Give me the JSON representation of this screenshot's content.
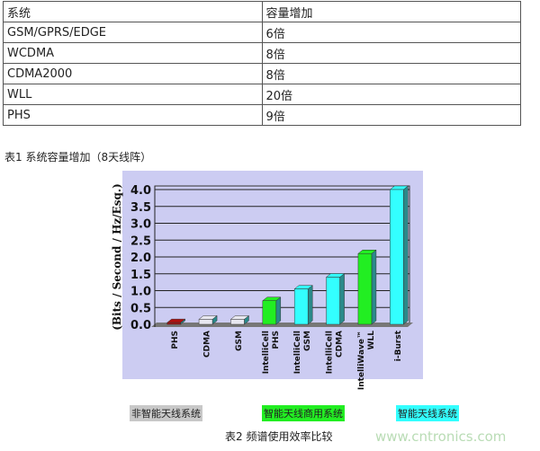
{
  "table": {
    "header": [
      "系统",
      "容量增加"
    ],
    "rows": [
      [
        "GSM/GPRS/EDGE",
        "6倍"
      ],
      [
        "WCDMA",
        "8倍"
      ],
      [
        "CDMA2000",
        "8倍"
      ],
      [
        "WLL",
        "20倍"
      ],
      [
        "PHS",
        "9倍"
      ]
    ]
  },
  "caption1": "表1 系统容量增加（8天线阵）",
  "chart_data": {
    "type": "bar",
    "ylabel": "(Bits / Second / Hz/Esq.)",
    "ylim": [
      0,
      4.0
    ],
    "yticks": [
      "0.0",
      "0.5",
      "1.0",
      "1.5",
      "2.0",
      "2.5",
      "3.0",
      "3.5",
      "4.0"
    ],
    "grid": true,
    "categories": [
      [
        "PHS"
      ],
      [
        "CDMA"
      ],
      [
        "GSM"
      ],
      [
        "IntelliCell",
        "PHS"
      ],
      [
        "IntelliCell",
        "GSM"
      ],
      [
        "IntelliCell",
        "CDMA"
      ],
      [
        "IntelliWave™",
        "WLL"
      ],
      [
        "i-Burst"
      ]
    ],
    "values": [
      0.05,
      0.15,
      0.15,
      0.7,
      1.05,
      1.4,
      2.1,
      4.0
    ],
    "groups": [
      0,
      0,
      0,
      1,
      2,
      2,
      1,
      2
    ],
    "colors": {
      "phs": "#b01010",
      "group0": "#e8e8f0",
      "group1": "#22ee22",
      "group2": "#33ffff"
    }
  },
  "legend": [
    {
      "label": "非智能天线系统",
      "color": "#c8c8c8"
    },
    {
      "label": "智能天线商用系统",
      "color": "#22ee22"
    },
    {
      "label": "智能天线系统",
      "color": "#33ffff"
    }
  ],
  "caption2": "表2 频谱使用效率比较",
  "watermark": "www.cntronics.com"
}
